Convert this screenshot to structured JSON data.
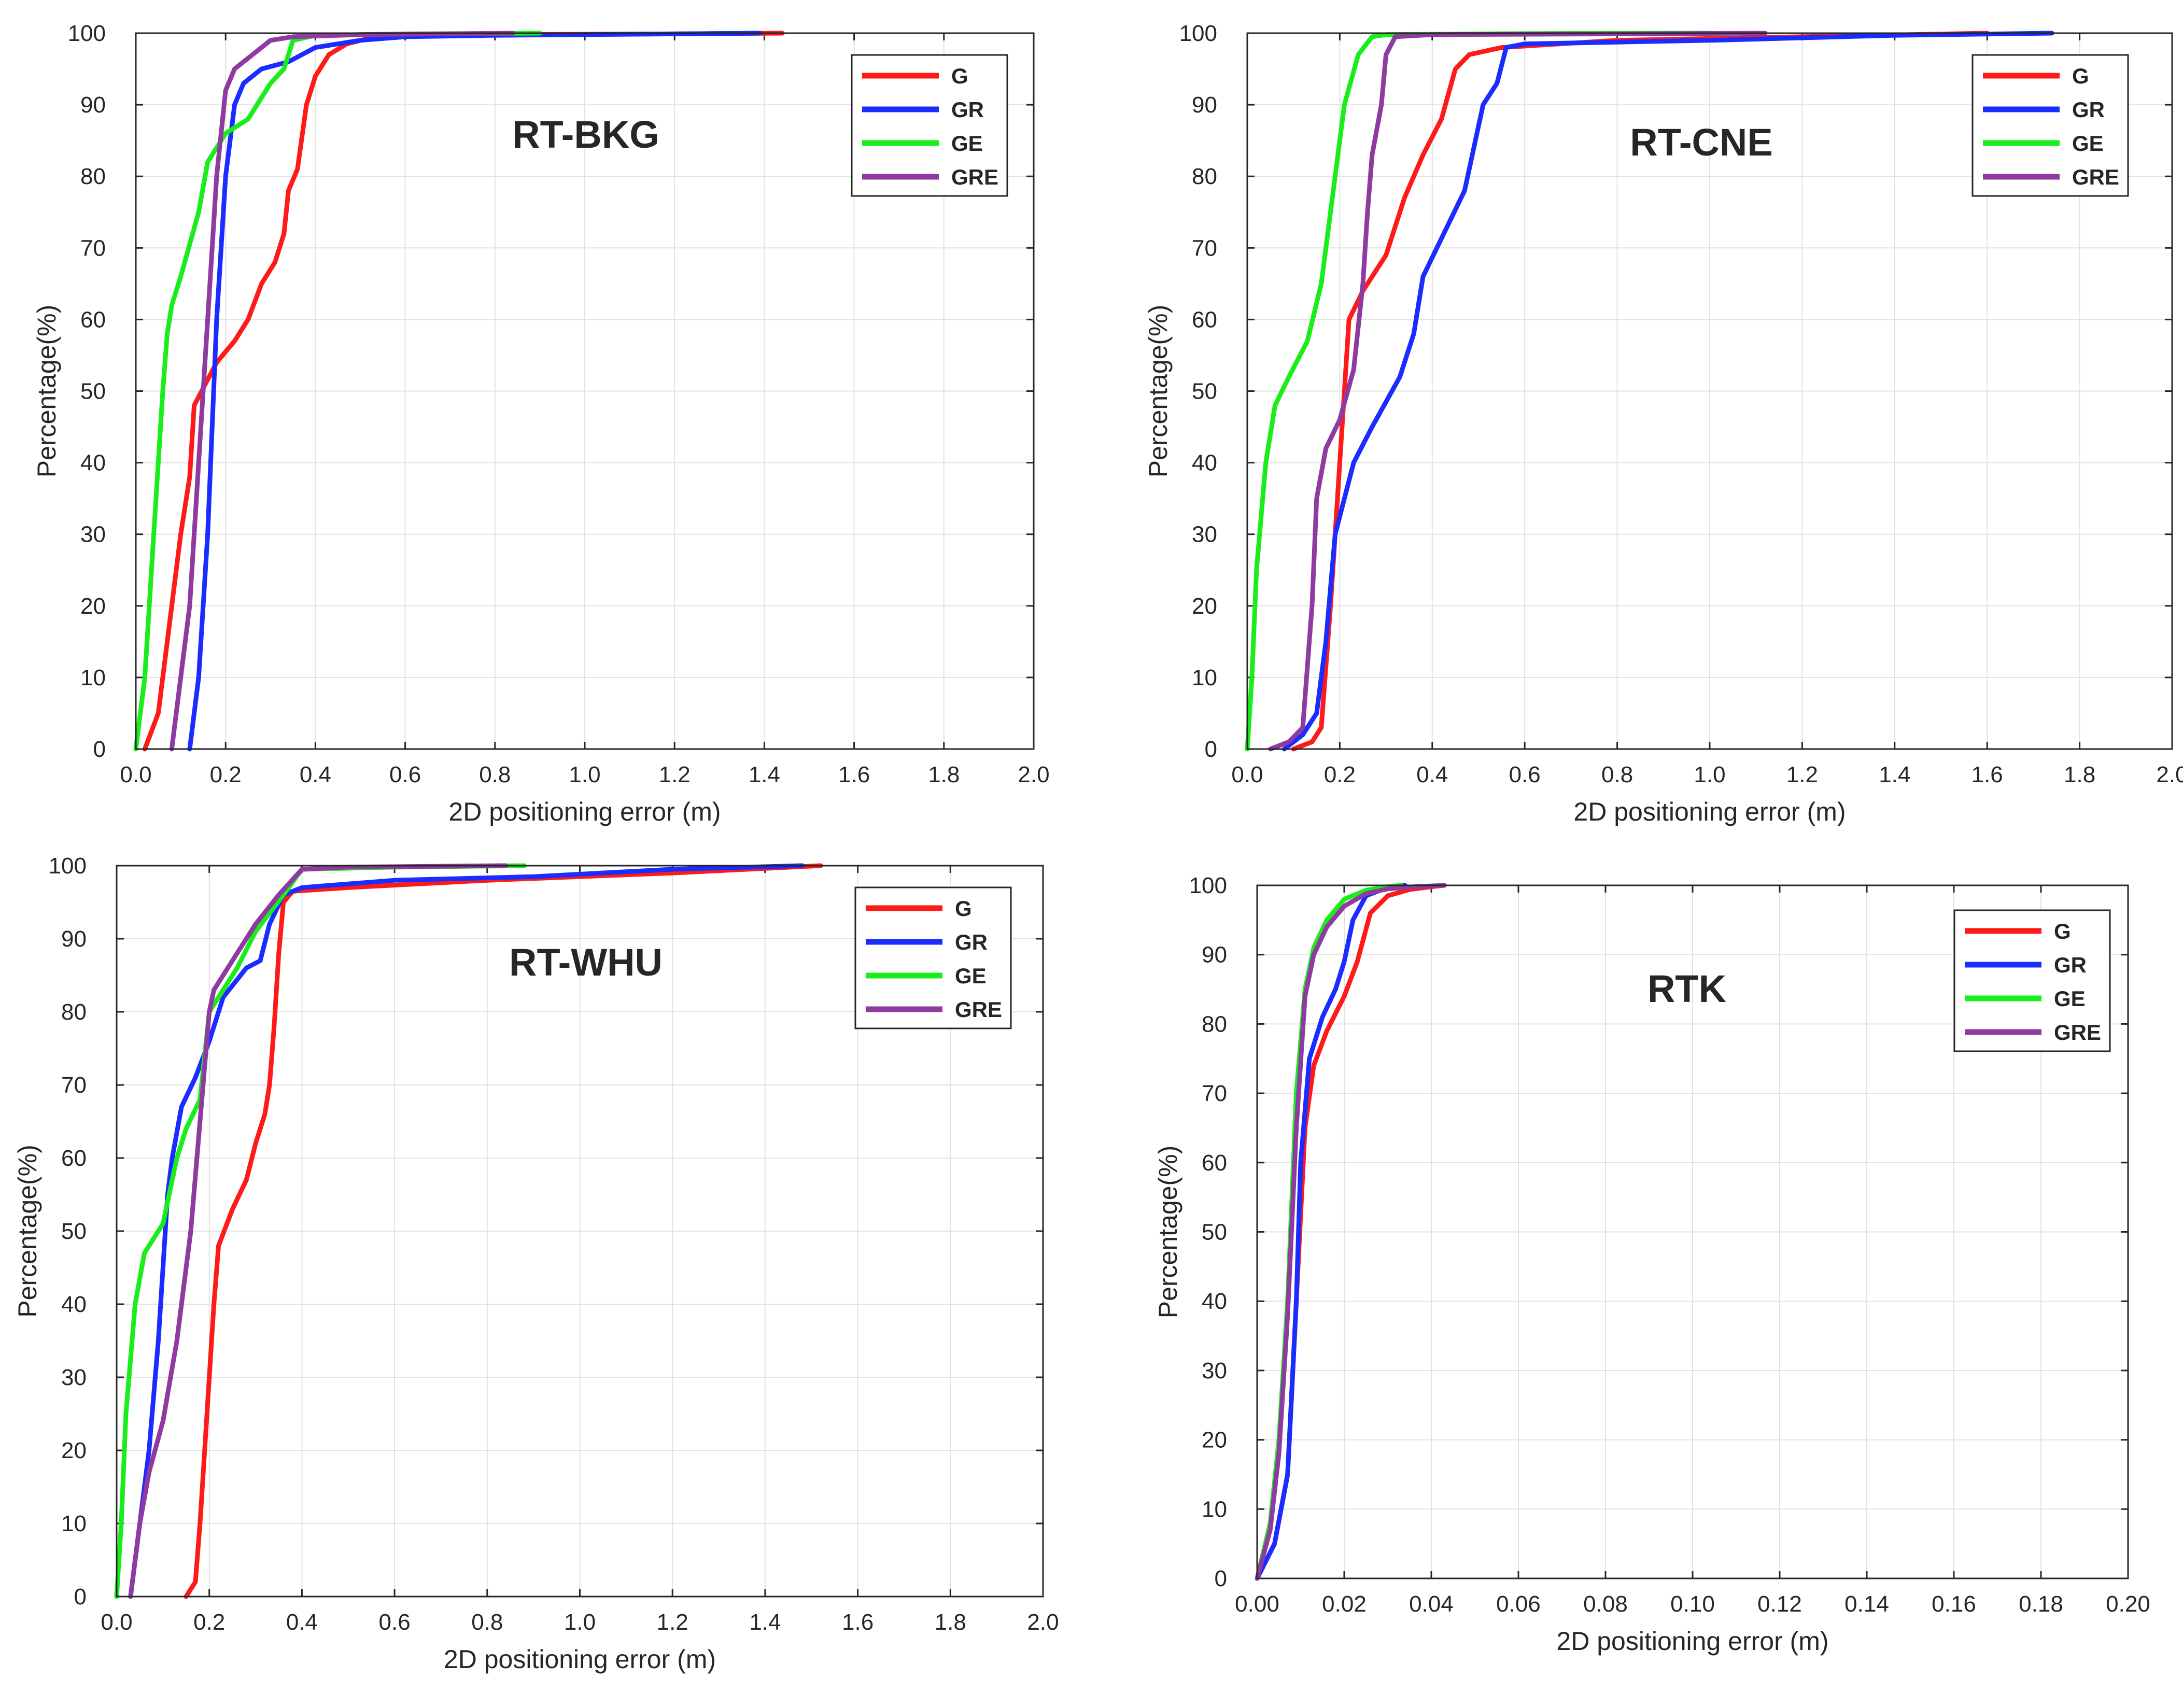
{
  "colors": {
    "G": "#ff1a1a",
    "GR": "#1a2cff",
    "GE": "#1aee1a",
    "GRE": "#8e3aa0"
  },
  "chart_data": [
    {
      "type": "line",
      "title": "RT-BKG",
      "xlabel": "2D positioning error (m)",
      "ylabel": "Percentage(%)",
      "xlim": [
        0,
        2.0
      ],
      "ylim": [
        0,
        100
      ],
      "xticks": [
        "0.0",
        "0.2",
        "0.4",
        "0.6",
        "0.8",
        "1.0",
        "1.2",
        "1.4",
        "1.6",
        "1.8",
        "2.0"
      ],
      "yticks": [
        "0",
        "10",
        "20",
        "30",
        "40",
        "50",
        "60",
        "70",
        "80",
        "90",
        "100"
      ],
      "legend": [
        "G",
        "GR",
        "GE",
        "GRE"
      ],
      "series": [
        {
          "name": "G",
          "x": [
            0.02,
            0.05,
            0.08,
            0.1,
            0.12,
            0.13,
            0.18,
            0.22,
            0.25,
            0.28,
            0.31,
            0.33,
            0.34,
            0.36,
            0.38,
            0.4,
            0.43,
            0.47,
            0.52,
            0.6,
            0.8,
            1.2,
            1.44
          ],
          "y": [
            0,
            5,
            20,
            30,
            38,
            48,
            54,
            57,
            60,
            65,
            68,
            72,
            78,
            81,
            90,
            94,
            97,
            98.5,
            99.3,
            99.6,
            99.8,
            99.9,
            100
          ]
        },
        {
          "name": "GR",
          "x": [
            0.12,
            0.14,
            0.16,
            0.18,
            0.2,
            0.22,
            0.24,
            0.28,
            0.34,
            0.4,
            0.5,
            0.6,
            0.8,
            1.0,
            1.39
          ],
          "y": [
            0,
            10,
            30,
            60,
            80,
            90,
            93,
            95,
            96,
            98,
            99,
            99.5,
            99.7,
            99.8,
            100
          ]
        },
        {
          "name": "GE",
          "x": [
            0.0,
            0.02,
            0.04,
            0.06,
            0.07,
            0.08,
            0.1,
            0.14,
            0.16,
            0.2,
            0.25,
            0.3,
            0.33,
            0.35,
            0.4,
            0.6,
            0.9
          ],
          "y": [
            0,
            10,
            30,
            50,
            58,
            62,
            66,
            75,
            82,
            86,
            88,
            93,
            95,
            99,
            99.7,
            99.9,
            100
          ]
        },
        {
          "name": "GRE",
          "x": [
            0.08,
            0.1,
            0.12,
            0.14,
            0.15,
            0.16,
            0.18,
            0.2,
            0.22,
            0.26,
            0.3,
            0.35,
            0.5,
            0.84
          ],
          "y": [
            0,
            10,
            20,
            40,
            50,
            60,
            80,
            92,
            95,
            97,
            99,
            99.5,
            99.8,
            100
          ]
        }
      ]
    },
    {
      "type": "line",
      "title": "RT-CNE",
      "xlabel": "2D positioning error (m)",
      "ylabel": "Percentage(%)",
      "xlim": [
        0,
        2.0
      ],
      "ylim": [
        0,
        100
      ],
      "xticks": [
        "0.0",
        "0.2",
        "0.4",
        "0.6",
        "0.8",
        "1.0",
        "1.2",
        "1.4",
        "1.6",
        "1.8",
        "2.0"
      ],
      "yticks": [
        "0",
        "10",
        "20",
        "30",
        "40",
        "50",
        "60",
        "70",
        "80",
        "90",
        "100"
      ],
      "legend": [
        "G",
        "GR",
        "GE",
        "GRE"
      ],
      "series": [
        {
          "name": "G",
          "x": [
            0.1,
            0.14,
            0.16,
            0.18,
            0.19,
            0.2,
            0.22,
            0.25,
            0.3,
            0.34,
            0.38,
            0.42,
            0.45,
            0.48,
            0.55,
            0.8,
            1.2,
            1.6
          ],
          "y": [
            0,
            1,
            3,
            20,
            30,
            40,
            60,
            64,
            69,
            77,
            83,
            88,
            95,
            97,
            98,
            99,
            99.5,
            100
          ]
        },
        {
          "name": "GR",
          "x": [
            0.08,
            0.12,
            0.15,
            0.17,
            0.19,
            0.21,
            0.23,
            0.27,
            0.33,
            0.36,
            0.38,
            0.41,
            0.47,
            0.51,
            0.54,
            0.56,
            0.6,
            1.0,
            1.4,
            1.74
          ],
          "y": [
            0,
            2,
            5,
            15,
            30,
            35,
            40,
            45,
            52,
            58,
            66,
            70,
            78,
            90,
            93,
            98,
            98.5,
            99,
            99.7,
            100
          ]
        },
        {
          "name": "GE",
          "x": [
            0.0,
            0.01,
            0.02,
            0.04,
            0.06,
            0.09,
            0.13,
            0.16,
            0.19,
            0.21,
            0.24,
            0.27,
            0.3,
            0.5,
            0.8,
            1.0
          ],
          "y": [
            0,
            10,
            25,
            40,
            48,
            52,
            57,
            65,
            80,
            90,
            97,
            99.5,
            99.8,
            99.9,
            100,
            100
          ]
        },
        {
          "name": "GRE",
          "x": [
            0.05,
            0.09,
            0.12,
            0.14,
            0.15,
            0.17,
            0.2,
            0.23,
            0.25,
            0.26,
            0.27,
            0.29,
            0.3,
            0.32,
            0.4,
            0.8,
            1.12
          ],
          "y": [
            0,
            1,
            3,
            20,
            35,
            42,
            46,
            53,
            65,
            75,
            83,
            90,
            97,
            99.5,
            99.8,
            99.9,
            100
          ]
        }
      ]
    },
    {
      "type": "line",
      "title": "RT-WHU",
      "xlabel": "2D positioning error (m)",
      "ylabel": "Percentage(%)",
      "xlim": [
        0,
        2.0
      ],
      "ylim": [
        0,
        100
      ],
      "xticks": [
        "0.0",
        "0.2",
        "0.4",
        "0.6",
        "0.8",
        "1.0",
        "1.2",
        "1.4",
        "1.6",
        "1.8",
        "2.0"
      ],
      "yticks": [
        "0",
        "10",
        "20",
        "30",
        "40",
        "50",
        "60",
        "70",
        "80",
        "90",
        "100"
      ],
      "legend": [
        "G",
        "GR",
        "GE",
        "GRE"
      ],
      "series": [
        {
          "name": "G",
          "x": [
            0.15,
            0.17,
            0.18,
            0.19,
            0.2,
            0.21,
            0.22,
            0.25,
            0.28,
            0.3,
            0.32,
            0.33,
            0.34,
            0.35,
            0.36,
            0.38,
            0.5,
            0.8,
            1.2,
            1.52
          ],
          "y": [
            0,
            2,
            10,
            20,
            30,
            40,
            48,
            53,
            57,
            62,
            66,
            70,
            78,
            88,
            95,
            96.5,
            97,
            98,
            99,
            100
          ]
        },
        {
          "name": "GR",
          "x": [
            0.03,
            0.05,
            0.07,
            0.09,
            0.1,
            0.11,
            0.12,
            0.14,
            0.17,
            0.2,
            0.23,
            0.28,
            0.31,
            0.33,
            0.36,
            0.4,
            0.6,
            0.9,
            1.2,
            1.48
          ],
          "y": [
            0,
            10,
            20,
            35,
            45,
            55,
            60,
            67,
            71,
            76,
            82,
            86,
            87,
            92,
            96,
            97,
            98,
            98.5,
            99.5,
            100
          ]
        },
        {
          "name": "GE",
          "x": [
            0.0,
            0.01,
            0.02,
            0.04,
            0.06,
            0.1,
            0.13,
            0.15,
            0.18,
            0.2,
            0.23,
            0.26,
            0.3,
            0.36,
            0.4,
            0.6,
            0.88
          ],
          "y": [
            0,
            10,
            25,
            40,
            47,
            51,
            60,
            64,
            68,
            80,
            83,
            86,
            91,
            96,
            99.5,
            99.8,
            100
          ]
        },
        {
          "name": "GRE",
          "x": [
            0.03,
            0.05,
            0.07,
            0.1,
            0.13,
            0.16,
            0.18,
            0.2,
            0.21,
            0.24,
            0.27,
            0.3,
            0.35,
            0.4,
            0.5,
            0.84
          ],
          "y": [
            0,
            10,
            17,
            24,
            35,
            50,
            65,
            80,
            83,
            86,
            89,
            92,
            96,
            99.5,
            99.8,
            100
          ]
        }
      ]
    },
    {
      "type": "line",
      "title": "RTK",
      "xlabel": "2D positioning error (m)",
      "ylabel": "Percentage(%)",
      "xlim": [
        0,
        0.2
      ],
      "ylim": [
        0,
        100
      ],
      "xticks": [
        "0.00",
        "0.02",
        "0.04",
        "0.06",
        "0.08",
        "0.10",
        "0.12",
        "0.14",
        "0.16",
        "0.18",
        "0.20"
      ],
      "yticks": [
        "0",
        "10",
        "20",
        "30",
        "40",
        "50",
        "60",
        "70",
        "80",
        "90",
        "100"
      ],
      "legend": [
        "G",
        "GR",
        "GE",
        "GRE"
      ],
      "series": [
        {
          "name": "G",
          "x": [
            0.0,
            0.004,
            0.007,
            0.009,
            0.011,
            0.013,
            0.016,
            0.02,
            0.023,
            0.026,
            0.03,
            0.035,
            0.04,
            0.043
          ],
          "y": [
            0,
            5,
            15,
            40,
            65,
            74,
            79,
            84,
            89,
            96,
            98.5,
            99.4,
            99.8,
            100
          ]
        },
        {
          "name": "GR",
          "x": [
            0.0,
            0.004,
            0.007,
            0.009,
            0.01,
            0.012,
            0.015,
            0.018,
            0.02,
            0.022,
            0.025,
            0.03,
            0.034
          ],
          "y": [
            0,
            5,
            15,
            40,
            60,
            75,
            81,
            85,
            89,
            95,
            98.5,
            99.7,
            100
          ]
        },
        {
          "name": "GE",
          "x": [
            0.0,
            0.003,
            0.005,
            0.007,
            0.009,
            0.011,
            0.013,
            0.016,
            0.02,
            0.025,
            0.03,
            0.033
          ],
          "y": [
            0,
            8,
            20,
            40,
            70,
            85,
            91,
            95,
            98,
            99.3,
            99.8,
            100
          ]
        },
        {
          "name": "GRE",
          "x": [
            0.0,
            0.003,
            0.005,
            0.007,
            0.009,
            0.011,
            0.013,
            0.016,
            0.02,
            0.025,
            0.03,
            0.036,
            0.043
          ],
          "y": [
            0,
            7,
            18,
            38,
            65,
            84,
            90,
            94,
            97,
            98.8,
            99.5,
            99.8,
            100
          ]
        }
      ]
    }
  ]
}
